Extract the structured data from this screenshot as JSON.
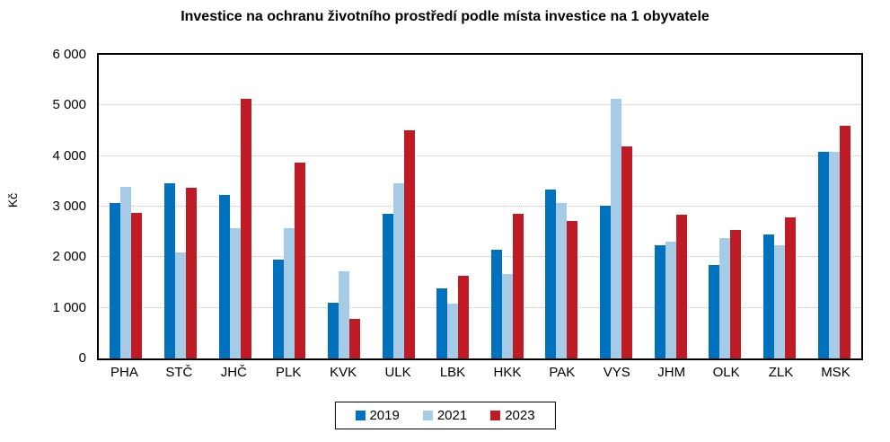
{
  "title": "Investice na ochranu životního prostředí podle místa investice na 1 obyvatele",
  "chart_data": {
    "type": "bar",
    "title": "Investice na ochranu životního prostředí podle místa investice na 1 obyvatele",
    "xlabel": "",
    "ylabel": "Kč",
    "ylim": [
      0,
      6000
    ],
    "ytick_values": [
      0,
      1000,
      2000,
      3000,
      4000,
      5000,
      6000
    ],
    "ytick_labels": [
      "0",
      "1 000",
      "2 000",
      "3 000",
      "4 000",
      "5 000",
      "6 000"
    ],
    "grid": "horizontal-dotted",
    "legend_position": "bottom",
    "categories": [
      "PHA",
      "STČ",
      "JHČ",
      "PLK",
      "KVK",
      "ULK",
      "LBK",
      "HKK",
      "PAK",
      "VYS",
      "JHM",
      "OLK",
      "ZLK",
      "MSK"
    ],
    "series": [
      {
        "name": "2019",
        "color": "#0071BC",
        "values": [
          3070,
          3460,
          3240,
          1960,
          1100,
          2860,
          1380,
          2140,
          3330,
          3010,
          2240,
          1840,
          2450,
          4090
        ]
      },
      {
        "name": "2021",
        "color": "#A6CBE7",
        "values": [
          3400,
          2090,
          2580,
          2580,
          1720,
          3470,
          1090,
          1670,
          3080,
          5130,
          2310,
          2380,
          2230,
          4090
        ]
      },
      {
        "name": "2023",
        "color": "#BE1B24",
        "values": [
          2870,
          3380,
          5130,
          3870,
          780,
          4510,
          1630,
          2860,
          2720,
          4190,
          2840,
          2540,
          2780,
          4590
        ]
      }
    ]
  }
}
